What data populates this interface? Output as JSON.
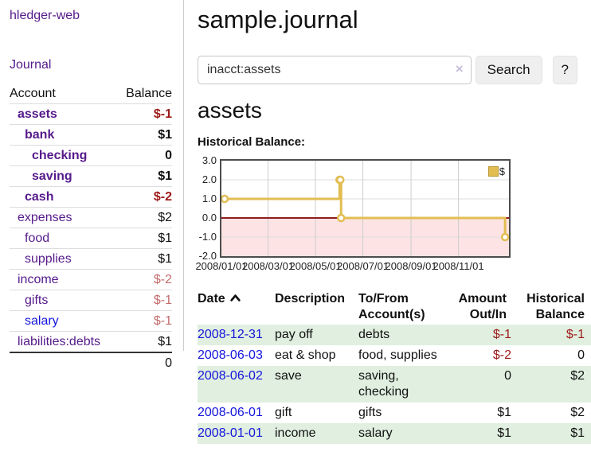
{
  "theme": {
    "link_purple": "#551a8b",
    "link_blue": "#1414dd",
    "negative_strong": "#9d1919",
    "negative_soft": "#c46c6c",
    "row_green": "#e0efdf",
    "accent_gold": "#e2bd52"
  },
  "app": {
    "brand": "hledger-web",
    "nav": {
      "journal": "Journal"
    }
  },
  "sidebar": {
    "header": {
      "account": "Account",
      "balance": "Balance"
    },
    "accounts": [
      {
        "name": "assets",
        "balance": "$-1",
        "level": 1,
        "bold": true,
        "tone": "neg-strong",
        "link": "purple"
      },
      {
        "name": "bank",
        "balance": "$1",
        "level": 2,
        "bold": true,
        "tone": "pos",
        "link": "purple"
      },
      {
        "name": "checking",
        "balance": "0",
        "level": 3,
        "bold": true,
        "tone": "pos",
        "link": "purple"
      },
      {
        "name": "saving",
        "balance": "$1",
        "level": 3,
        "bold": true,
        "tone": "pos",
        "link": "purple"
      },
      {
        "name": "cash",
        "balance": "$-2",
        "level": 2,
        "bold": true,
        "tone": "neg-strong",
        "link": "purple"
      },
      {
        "name": "expenses",
        "balance": "$2",
        "level": 1,
        "bold": false,
        "tone": "pos",
        "link": "purple"
      },
      {
        "name": "food",
        "balance": "$1",
        "level": 2,
        "bold": false,
        "tone": "pos",
        "link": "purple"
      },
      {
        "name": "supplies",
        "balance": "$1",
        "level": 2,
        "bold": false,
        "tone": "pos",
        "link": "purple"
      },
      {
        "name": "income",
        "balance": "$-2",
        "level": 1,
        "bold": false,
        "tone": "neg-soft",
        "link": "purple"
      },
      {
        "name": "gifts",
        "balance": "$-1",
        "level": 2,
        "bold": false,
        "tone": "neg-soft",
        "link": "purple"
      },
      {
        "name": "salary",
        "balance": "$-1",
        "level": 2,
        "bold": false,
        "tone": "neg-soft",
        "link": "blue"
      },
      {
        "name": "liabilities:debts",
        "balance": "$1",
        "level": 1,
        "bold": false,
        "tone": "pos",
        "link": "purple"
      }
    ],
    "total": "0"
  },
  "main": {
    "title": "sample.journal",
    "search": {
      "value": "inacct:assets",
      "clear_icon": "×",
      "button_label": "Search",
      "help_label": "?"
    },
    "account_heading": "assets",
    "chart_label": "Historical Balance:"
  },
  "chart_data": {
    "type": "line",
    "step": true,
    "title": "Historical Balance:",
    "legend": {
      "label": "$",
      "position": "top-right"
    },
    "ylim": [
      -2,
      3
    ],
    "ytick_labels": [
      "3.0",
      "2.0",
      "1.0",
      "0.0",
      "-1.0",
      "-2.0"
    ],
    "xlim": [
      "2008-01-01",
      "2009-01-05"
    ],
    "xticks": [
      {
        "label": "2008/01/01",
        "date": "2008-01-01"
      },
      {
        "label": "2008/03/01",
        "date": "2008-03-01"
      },
      {
        "label": "2008/05/01",
        "date": "2008-05-01"
      },
      {
        "label": "2008/07/01",
        "date": "2008-07-01"
      },
      {
        "label": "2008/09/01",
        "date": "2008-09-01"
      },
      {
        "label": "2008/11/01",
        "date": "2008-11-01"
      }
    ],
    "series": [
      {
        "name": "$",
        "points": [
          [
            "2008-01-01",
            1
          ],
          [
            "2008-06-01",
            2
          ],
          [
            "2008-06-02",
            2
          ],
          [
            "2008-06-03",
            0
          ],
          [
            "2008-12-31",
            -1
          ]
        ]
      }
    ],
    "colors": {
      "line": "#e2bd52",
      "marker_fill": "#ffffff",
      "negative_region": "#fde3e3",
      "zero_line": "#8f1d1d",
      "grid": "#cdcdcd",
      "grid_h": "#dedede",
      "plot_border": "#4d4d4d"
    }
  },
  "register": {
    "columns": [
      {
        "label": "Date",
        "sort": "asc",
        "align": "left"
      },
      {
        "label": "Description",
        "align": "left"
      },
      {
        "label": "To/From\nAccount(s)",
        "align": "left"
      },
      {
        "label": "Amount\nOut/In",
        "align": "right"
      },
      {
        "label": "Historical\nBalance",
        "align": "right"
      }
    ],
    "rows": [
      {
        "date": "2008-12-31",
        "description": "pay off",
        "accounts": "debts",
        "amount": "$-1",
        "amount_negative": true,
        "balance": "$-1",
        "balance_negative": true
      },
      {
        "date": "2008-06-03",
        "description": "eat & shop",
        "accounts": "food, supplies",
        "amount": "$-2",
        "amount_negative": true,
        "balance": "0",
        "balance_negative": false
      },
      {
        "date": "2008-06-02",
        "description": "save",
        "accounts": "saving, checking",
        "amount": "0",
        "amount_negative": false,
        "balance": "$2",
        "balance_negative": false
      },
      {
        "date": "2008-06-01",
        "description": "gift",
        "accounts": "gifts",
        "amount": "$1",
        "amount_negative": false,
        "balance": "$2",
        "balance_negative": false
      },
      {
        "date": "2008-01-01",
        "description": "income",
        "accounts": "salary",
        "amount": "$1",
        "amount_negative": false,
        "balance": "$1",
        "balance_negative": false
      }
    ]
  }
}
